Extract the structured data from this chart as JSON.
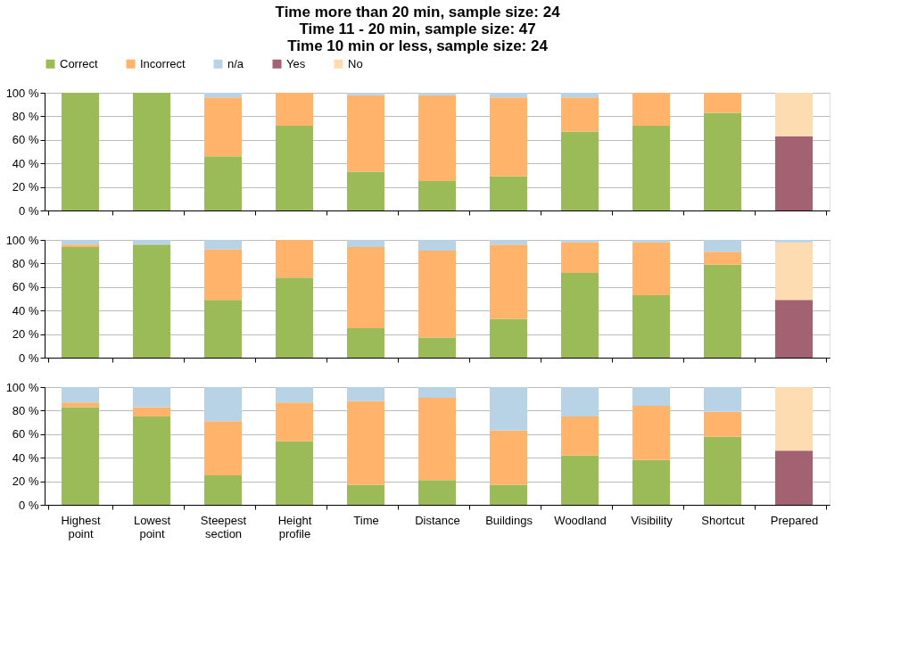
{
  "chart_data": [
    {
      "type": "bar",
      "stacked": true,
      "title": "Time more than 20 min, sample size: 24\nTime 11 - 20 min, sample size: 47\nTime 10 min or less, sample size: 24",
      "legend": "top",
      "grid": "y",
      "tick_labels": "y",
      "categories": [
        "Highest point",
        "Lowest point",
        "Steepest section",
        "Height profile",
        "Time",
        "Distance",
        "Buildings",
        "Woodland",
        "Visibility",
        "Shortcut",
        "Prepared"
      ],
      "ylim": [
        0,
        100
      ],
      "yticks": [
        {
          "value": 0,
          "label": "0 %"
        },
        {
          "value": 20,
          "label": "20 %"
        },
        {
          "value": 40,
          "label": "40 %"
        },
        {
          "value": 60,
          "label": "60 %"
        },
        {
          "value": 80,
          "label": "80 %"
        },
        {
          "value": 100,
          "label": "100 %"
        }
      ],
      "series": [
        {
          "name": "Correct",
          "color": "#9bbb59",
          "values": [
            100,
            100,
            46,
            72,
            33,
            25,
            29,
            67,
            72,
            83,
            null
          ]
        },
        {
          "name": "Incorrect",
          "color": "#ffb36b",
          "values": [
            0,
            0,
            50,
            28,
            65,
            73,
            67,
            29,
            28,
            17,
            null
          ]
        },
        {
          "name": "n/a",
          "color": "#b9d3e6",
          "values": [
            0,
            0,
            4,
            0,
            2,
            2,
            4,
            4,
            0,
            0,
            null
          ]
        },
        {
          "name": "Yes",
          "color": "#a36272",
          "values": [
            null,
            null,
            null,
            null,
            null,
            null,
            null,
            null,
            null,
            null,
            63
          ]
        },
        {
          "name": "No",
          "color": "#fedcb1",
          "values": [
            null,
            null,
            null,
            null,
            null,
            null,
            null,
            null,
            null,
            null,
            37
          ]
        }
      ]
    },
    {
      "type": "bar",
      "stacked": true,
      "grid": "y",
      "tick_labels": "y",
      "categories": [
        "Highest point",
        "Lowest point",
        "Steepest section",
        "Height profile",
        "Time",
        "Distance",
        "Buildings",
        "Woodland",
        "Visibility",
        "Shortcut",
        "Prepared"
      ],
      "ylim": [
        0,
        100
      ],
      "yticks": [
        {
          "value": 0,
          "label": "0 %"
        },
        {
          "value": 20,
          "label": "20 %"
        },
        {
          "value": 40,
          "label": "40 %"
        },
        {
          "value": 60,
          "label": "60 %"
        },
        {
          "value": 80,
          "label": "80 %"
        },
        {
          "value": 100,
          "label": "100 %"
        }
      ],
      "series": [
        {
          "name": "Correct",
          "color": "#9bbb59",
          "values": [
            94,
            96,
            49,
            68,
            25,
            17,
            33,
            72,
            53,
            79,
            null
          ]
        },
        {
          "name": "Incorrect",
          "color": "#ffb36b",
          "values": [
            2,
            0,
            43,
            32,
            69,
            74,
            63,
            26,
            45,
            11,
            null
          ]
        },
        {
          "name": "Yes",
          "color": "#a36272",
          "values": [
            null,
            null,
            null,
            null,
            null,
            null,
            null,
            null,
            null,
            null,
            49
          ]
        },
        {
          "name": "No",
          "color": "#fedcb1",
          "values": [
            null,
            null,
            null,
            null,
            null,
            null,
            null,
            null,
            null,
            null,
            49
          ]
        },
        {
          "name": "n/a",
          "color": "#b9d3e6",
          "values": [
            4,
            4,
            8,
            0,
            6,
            9,
            4,
            2,
            2,
            10,
            2
          ]
        }
      ]
    },
    {
      "type": "bar",
      "stacked": true,
      "grid": "y",
      "categories": [
        "Highest point",
        "Lowest point",
        "Steepest section",
        "Height profile",
        "Time",
        "Distance",
        "Buildings",
        "Woodland",
        "Visibility",
        "Shortcut",
        "Prepared"
      ],
      "ylim": [
        0,
        100
      ],
      "yticks": [
        {
          "value": 0,
          "label": "0 %"
        },
        {
          "value": 20,
          "label": "20 %"
        },
        {
          "value": 40,
          "label": "40 %"
        },
        {
          "value": 60,
          "label": "60 %"
        },
        {
          "value": 80,
          "label": "80 %"
        },
        {
          "value": 100,
          "label": "100 %"
        }
      ],
      "series": [
        {
          "name": "Correct",
          "color": "#9bbb59",
          "values": [
            83,
            75,
            25,
            54,
            17,
            21,
            17,
            42,
            38,
            58,
            null
          ]
        },
        {
          "name": "Incorrect",
          "color": "#ffb36b",
          "values": [
            4,
            8,
            46,
            33,
            71,
            70,
            46,
            33,
            46,
            21,
            null
          ]
        },
        {
          "name": "n/a",
          "color": "#b9d3e6",
          "values": [
            13,
            17,
            29,
            13,
            12,
            9,
            37,
            25,
            16,
            21,
            null
          ]
        },
        {
          "name": "Yes",
          "color": "#a36272",
          "values": [
            null,
            null,
            null,
            null,
            null,
            null,
            null,
            null,
            null,
            null,
            46
          ]
        },
        {
          "name": "No",
          "color": "#fedcb1",
          "values": [
            null,
            null,
            null,
            null,
            null,
            null,
            null,
            null,
            null,
            null,
            54
          ]
        }
      ]
    }
  ]
}
